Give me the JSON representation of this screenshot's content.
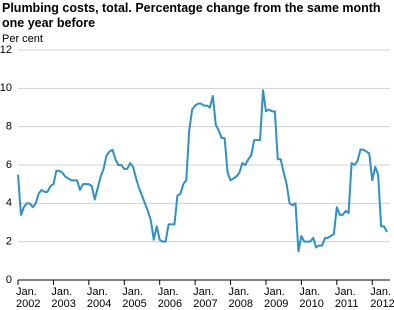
{
  "chart_data": {
    "type": "line",
    "title": "Plumbing costs, total. Percentage change from the same month one year before",
    "y_label": "Per cent",
    "categories": [
      "Jan.\n2002",
      null,
      null,
      null,
      null,
      null,
      null,
      null,
      null,
      null,
      null,
      null,
      "Jan.\n2003",
      null,
      null,
      null,
      null,
      null,
      null,
      null,
      null,
      null,
      null,
      null,
      "Jan.\n2004",
      null,
      null,
      null,
      null,
      null,
      null,
      null,
      null,
      null,
      null,
      null,
      "Jan.\n2005",
      null,
      null,
      null,
      null,
      null,
      null,
      null,
      null,
      null,
      null,
      null,
      "Jan.\n2006",
      null,
      null,
      null,
      null,
      null,
      null,
      null,
      null,
      null,
      null,
      null,
      "Jan.\n2007",
      null,
      null,
      null,
      null,
      null,
      null,
      null,
      null,
      null,
      null,
      null,
      "Jan.\n2008",
      null,
      null,
      null,
      null,
      null,
      null,
      null,
      null,
      null,
      null,
      null,
      "Jan.\n2009",
      null,
      null,
      null,
      null,
      null,
      null,
      null,
      null,
      null,
      null,
      null,
      "Jan.\n2010",
      null,
      null,
      null,
      null,
      null,
      null,
      null,
      null,
      null,
      null,
      null,
      "Jan.\n2011",
      null,
      null,
      null,
      null,
      null,
      null,
      null,
      null,
      null,
      null,
      null,
      "Jan.\n2012",
      null,
      null,
      null,
      null,
      null
    ],
    "series": [
      {
        "color": "#2f8fc6",
        "values": [
          5.5,
          3.4,
          3.8,
          4.0,
          4.0,
          3.8,
          4.0,
          4.5,
          4.7,
          4.6,
          4.6,
          4.9,
          5.0,
          5.7,
          5.7,
          5.6,
          5.4,
          5.3,
          5.2,
          5.2,
          5.2,
          4.7,
          5.0,
          5.0,
          5.0,
          4.9,
          4.2,
          4.8,
          5.4,
          5.8,
          6.5,
          6.7,
          6.8,
          6.3,
          6.0,
          6.0,
          5.8,
          5.8,
          6.1,
          5.9,
          5.3,
          4.8,
          4.4,
          4.0,
          3.6,
          3.1,
          2.1,
          2.8,
          2.1,
          2.0,
          2.0,
          2.9,
          2.9,
          2.9,
          4.4,
          4.5,
          5.0,
          5.2,
          7.8,
          8.9,
          9.1,
          9.2,
          9.2,
          9.1,
          9.1,
          9.0,
          9.6,
          8.1,
          7.8,
          7.4,
          7.4,
          5.6,
          5.2,
          5.3,
          5.4,
          5.6,
          6.1,
          6.0,
          6.3,
          6.5,
          7.3,
          7.3,
          7.3,
          9.9,
          8.8,
          8.9,
          8.8,
          8.8,
          6.3,
          6.3,
          5.6,
          5.0,
          4.0,
          3.9,
          4.0,
          1.5,
          2.3,
          2.0,
          2.0,
          2.0,
          2.2,
          1.7,
          1.8,
          1.8,
          2.2,
          2.2,
          2.3,
          2.4,
          3.8,
          3.4,
          3.4,
          3.6,
          3.5,
          6.1,
          6.0,
          6.2,
          6.8,
          6.8,
          6.7,
          6.6,
          5.2,
          5.9,
          5.5,
          2.8,
          2.8,
          2.5
        ]
      }
    ],
    "ylim": [
      0,
      12
    ],
    "yticks": [
      0,
      2,
      4,
      6,
      8,
      10,
      12
    ],
    "grid": true
  }
}
